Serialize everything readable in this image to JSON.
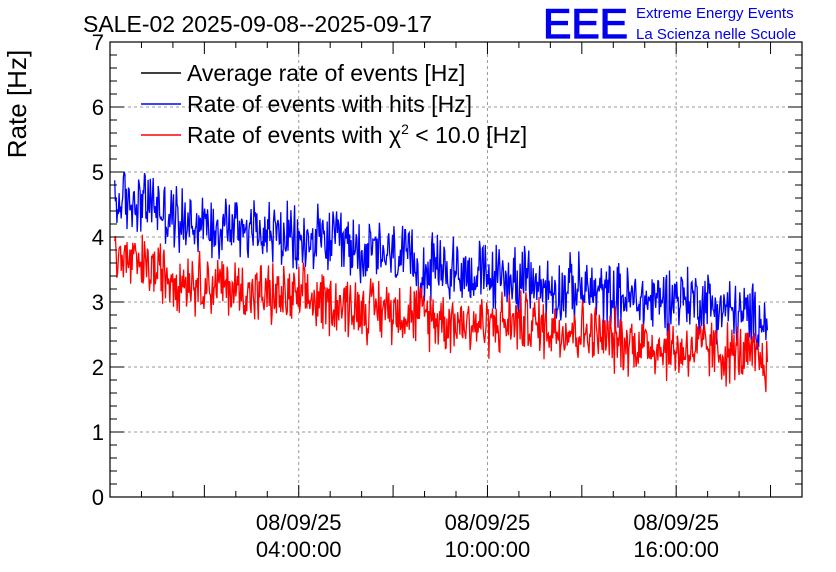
{
  "chart_data": {
    "type": "line",
    "title": "SALE-02 2025-09-08--2025-09-17",
    "ylabel": "Rate [Hz]",
    "xlabel": "",
    "ylim": [
      0,
      7
    ],
    "y_ticks": [
      0,
      1,
      2,
      3,
      4,
      5,
      6,
      7
    ],
    "x_range_hours": [
      -2.0,
      20.0
    ],
    "x_tick_labels": [
      {
        "hour": 4,
        "date": "08/09/25",
        "time": "04:00:00"
      },
      {
        "hour": 10,
        "date": "08/09/25",
        "time": "10:00:00"
      },
      {
        "hour": 16,
        "date": "08/09/25",
        "time": "16:00:00"
      }
    ],
    "grid": true,
    "legend_position": "top-left",
    "logo": {
      "letters": "EEE",
      "line1": "Extreme Energy Events",
      "line2": "La Scienza nelle Scuole",
      "color": "#0000ee"
    },
    "series": [
      {
        "name": "Average rate of events [Hz]",
        "legend_base": "Average rate of events [Hz]",
        "color": "#000000",
        "x_hours": [],
        "values": []
      },
      {
        "name": "Rate of events with hits [Hz]",
        "legend_base": "Rate of events with hits [Hz]",
        "color": "#0000ff",
        "x_hours": [
          -1.85,
          -1.0,
          0.0,
          1.0,
          2.0,
          3.0,
          4.0,
          5.0,
          6.0,
          7.0,
          8.0,
          9.0,
          10.0,
          11.0,
          12.0,
          13.0,
          14.0,
          15.0,
          16.0,
          17.0,
          17.5,
          18.0,
          18.5,
          18.9
        ],
        "values": [
          4.5,
          4.6,
          4.3,
          4.2,
          4.2,
          4.1,
          3.9,
          3.95,
          3.8,
          3.7,
          3.5,
          3.5,
          3.4,
          3.35,
          3.2,
          3.2,
          3.1,
          3.0,
          3.1,
          3.0,
          2.9,
          2.8,
          2.75,
          2.7
        ]
      },
      {
        "name": "Rate of events with χ² < 10.0 [Hz]",
        "legend_base": "Rate of events with χ",
        "legend_sup": "2",
        "legend_tail": " < 10.0 [Hz]",
        "color": "#ff0000",
        "x_hours": [
          -1.85,
          -1.0,
          0.0,
          1.0,
          2.0,
          3.0,
          4.0,
          5.0,
          6.0,
          7.0,
          8.0,
          9.0,
          10.0,
          11.0,
          12.0,
          13.0,
          14.0,
          15.0,
          16.0,
          17.0,
          17.5,
          18.0,
          18.5,
          18.9
        ],
        "values": [
          3.7,
          3.55,
          3.4,
          3.3,
          3.2,
          3.1,
          3.05,
          3.0,
          2.9,
          2.9,
          2.8,
          2.7,
          2.65,
          2.7,
          2.6,
          2.55,
          2.4,
          2.35,
          2.25,
          2.3,
          2.2,
          2.2,
          2.1,
          2.1
        ]
      }
    ]
  }
}
